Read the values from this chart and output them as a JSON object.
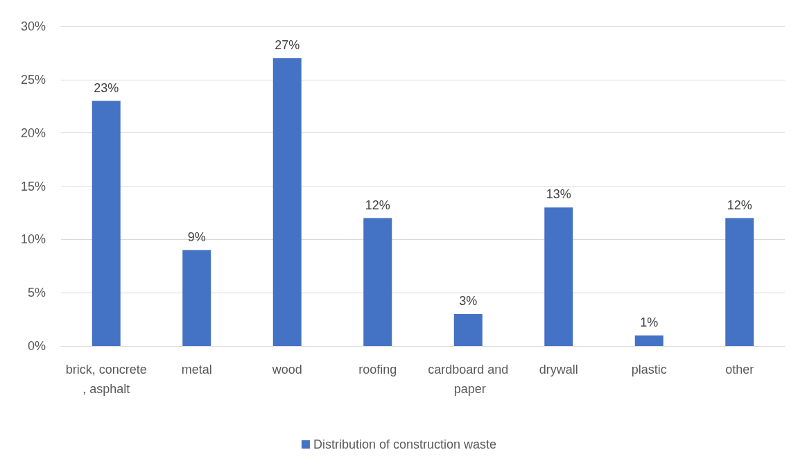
{
  "chart_data": {
    "type": "bar",
    "categories": [
      "brick, concrete, asphalt",
      "metal",
      "wood",
      "roofing",
      "cardboard and paper",
      "drywall",
      "plastic",
      "other"
    ],
    "series": [
      {
        "name": "Distribution of construction waste",
        "color": "#4472c4",
        "values": [
          23,
          9,
          27,
          12,
          3,
          13,
          1,
          12
        ],
        "value_labels": [
          "23%",
          "9%",
          "27%",
          "12%",
          "3%",
          "13%",
          "1%",
          "12%"
        ]
      }
    ],
    "ylim": [
      0,
      30
    ],
    "yticks": [
      {
        "value": 0,
        "label": "0%"
      },
      {
        "value": 5,
        "label": "5%"
      },
      {
        "value": 10,
        "label": "10%"
      },
      {
        "value": 15,
        "label": "15%"
      },
      {
        "value": 20,
        "label": "20%"
      },
      {
        "value": 25,
        "label": "25%"
      },
      {
        "value": 30,
        "label": "30%"
      }
    ],
    "grid": "y",
    "legend": "bottom"
  }
}
